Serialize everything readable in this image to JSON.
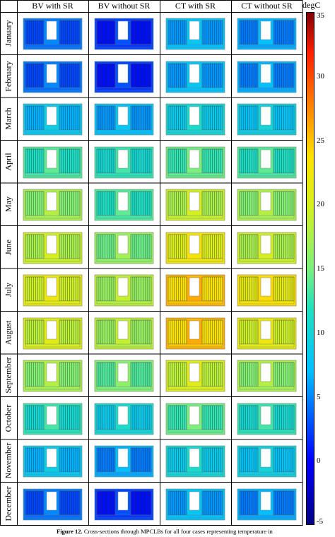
{
  "columns": [
    "BV with SR",
    "BV without SR",
    "CT with SR",
    "CT without SR"
  ],
  "rows": [
    "January",
    "February",
    "March",
    "April",
    "May",
    "June",
    "July",
    "August",
    "September",
    "October",
    "November",
    "December"
  ],
  "colorbar": {
    "title": "degC",
    "ticks": [
      "35",
      "30",
      "25",
      "20",
      "15",
      "10",
      "5",
      "0",
      "-5"
    ],
    "min": -5,
    "max": 35
  },
  "temperatures": [
    [
      5,
      3,
      8,
      7
    ],
    [
      5,
      3,
      8,
      7
    ],
    [
      9,
      8,
      11,
      10
    ],
    [
      14,
      13,
      15,
      14
    ],
    [
      18,
      14,
      20,
      18
    ],
    [
      20,
      17,
      23,
      20
    ],
    [
      22,
      19,
      26,
      24
    ],
    [
      21,
      19,
      26,
      22
    ],
    [
      18,
      16,
      21,
      18
    ],
    [
      13,
      11,
      15,
      13
    ],
    [
      9,
      7,
      11,
      10
    ],
    [
      5,
      3,
      8,
      7
    ]
  ],
  "caption": {
    "label": "Figure 12.",
    "text": "Cross-sections through MPCLBs for all four cases representing temperature in"
  }
}
